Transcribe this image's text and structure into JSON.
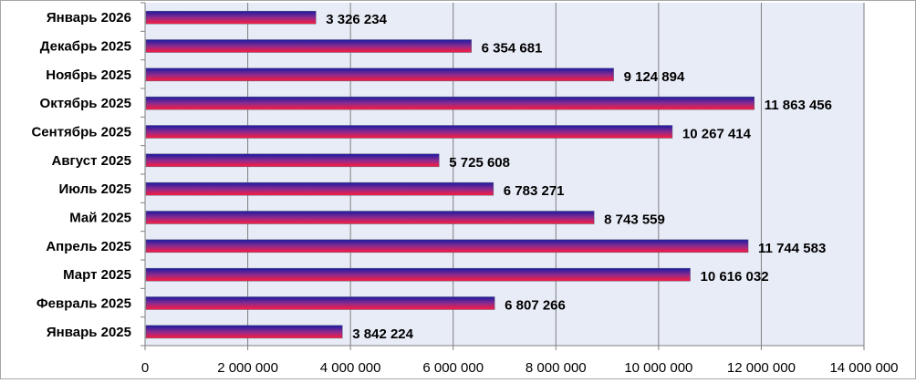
{
  "chart_data": {
    "type": "bar",
    "orientation": "horizontal",
    "title": "",
    "xlabel": "",
    "ylabel": "",
    "xlim": [
      0,
      14000000
    ],
    "x_ticks": [
      0,
      2000000,
      4000000,
      6000000,
      8000000,
      10000000,
      12000000,
      14000000
    ],
    "x_tick_labels": [
      "0",
      "2 000 000",
      "4 000 000",
      "6 000 000",
      "8 000 000",
      "10 000 000",
      "12 000 000",
      "14 000 000"
    ],
    "grid": true,
    "legend": "none",
    "categories": [
      "Январь 2026",
      "Декабрь 2025",
      "Ноябрь 2025",
      "Октябрь 2025",
      "Сентябрь 2025",
      "Август 2025",
      "Июль 2025",
      "Май 2025",
      "Апрель 2025",
      "Март 2025",
      "Февраль 2025",
      "Январь 2025"
    ],
    "values": [
      3326234,
      6354681,
      9124894,
      11863456,
      10267414,
      5725608,
      6783271,
      8743559,
      11744583,
      10616032,
      6807266,
      3842224
    ],
    "value_labels": [
      "3 326 234",
      "6 354 681",
      "9 124 894",
      "11 863 456",
      "10 267 414",
      "5 725 608",
      "6 783 271",
      "8 743 559",
      "11 744 583",
      "10 616 032",
      "6 807 266",
      "3 842 224"
    ],
    "colors": {
      "bar_top": "#1a1aa0",
      "bar_mid": "#8a2b8f",
      "bar_bottom": "#ff1a3c",
      "plot_bg": "#e8ecf7",
      "grid": "#7f7f7f",
      "axis": "#7f7f7f"
    }
  }
}
